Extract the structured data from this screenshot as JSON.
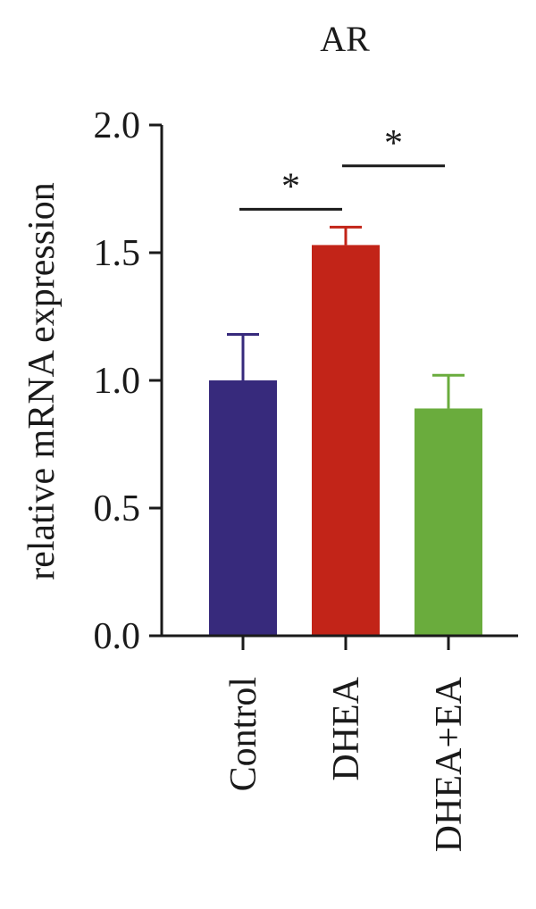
{
  "chart_data": {
    "type": "bar",
    "title": "AR",
    "ylabel": "relative mRNA expression",
    "xlabel": "",
    "categories": [
      "Control",
      "DHEA",
      "DHEA+EA"
    ],
    "values": [
      1.0,
      1.53,
      0.89
    ],
    "error_upper": [
      1.18,
      1.6,
      1.02
    ],
    "colors": [
      "#372a7c",
      "#c22418",
      "#6aac3d"
    ],
    "ylim": [
      0,
      2.0
    ],
    "yticks": [
      0.0,
      0.5,
      1.0,
      1.5,
      2.0
    ],
    "ytick_labels": [
      "0.0",
      "0.5",
      "1.0",
      "1.5",
      "2.0"
    ],
    "grid": false,
    "significance": [
      {
        "between": [
          "Control",
          "DHEA"
        ],
        "label": "*"
      },
      {
        "between": [
          "DHEA",
          "DHEA+EA"
        ],
        "label": "*"
      }
    ]
  }
}
